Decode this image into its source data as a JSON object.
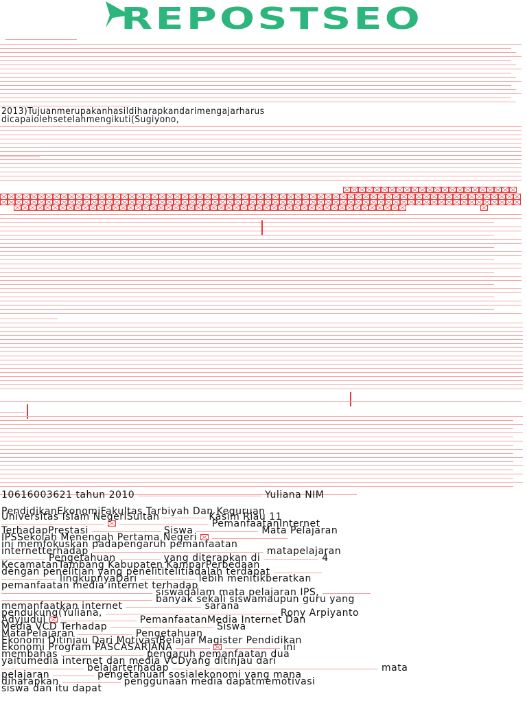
{
  "header": {
    "logo_text": "REPOSTSEO",
    "brand_color": "#2cb67d"
  },
  "colors": {
    "rule": "#f5a3a3",
    "missing_glyph": "#e03a3a",
    "text": "#111111"
  },
  "upper_text": {
    "line1": "2013)Tujuanmerupakanhasildiharapkandarimengajarharus",
    "line2": "dicapaiolehsetelahmengikuti(Sugiyono,"
  },
  "body_text": {
    "lines": [
      "10616003621 tahun 2010",
      "PendidikanEkonomiFakultas Tarbiyah Dan Keguruan",
      "Universitas Islam NegeriSultan",
      "PemanfaatanInternet",
      "TerhadapPrestasi",
      "Siswa",
      "Mata Pelajaran",
      "IPSSekolah Menengah Pertama Negeri",
      "ini memfokuskan padapengaruh pemanfaatan",
      "internetterhadap",
      "matapelajaran",
      "Pengetahuan",
      "yang diterapkan di",
      "KecamatanTambang Kabupaten KamparPerbedaan",
      "dengan penelitian yang penelititelitiadalah terdapat",
      "lingkupnyaDari",
      "lebih menitikberatkan",
      "pemanfaatan media internet terhadap",
      "siswadalam mata pelajaran IPS,",
      "banyak sekali siswamaupun guru yang",
      "memanfaatkan internet",
      "sarana",
      "pendukung(Yuliana,",
      "Rony Arpiyanto",
      "Adyjudul",
      "PemanfaatanMedia Internet Dan",
      "Media VCD Terhadap",
      "Siswa",
      "MataPelajaran",
      "Pengetahuan",
      "Ekonomi Ditinjau Dari MotivasiBelajar Magister Pendidikan",
      "Ekonomi Program PASCASARJANA",
      "ini",
      "membahas",
      "pengaruh pemanfaatan dua",
      "yaitumedia internet dan media VCDyang ditinjau dari",
      "belajarterhadap",
      "mata",
      "pelajaran",
      "pengetahuan sosialekonomi yang mana",
      "diharapkan",
      "penggunaan media dapatmemotivasi",
      "siswa dan itu dapat",
      "Yuliana NIM",
      "Kasim Riau 11",
      "4"
    ]
  }
}
